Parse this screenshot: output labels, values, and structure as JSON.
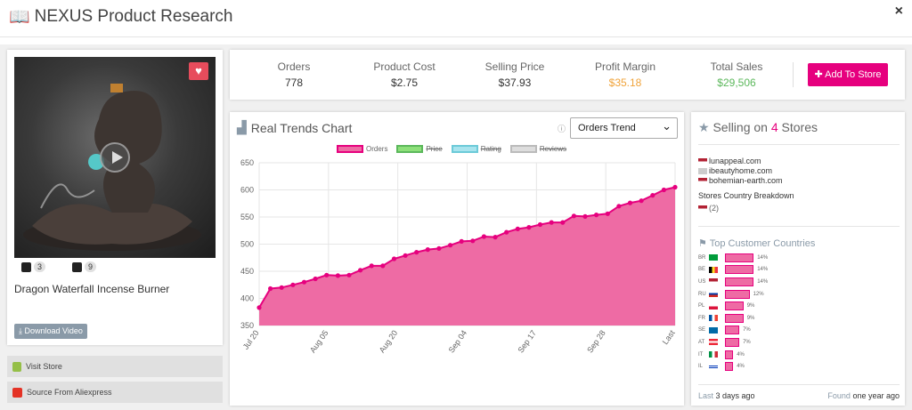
{
  "app": {
    "title": "NEXUS Product Research",
    "close_label": "×"
  },
  "product": {
    "name": "Dragon Waterfall Incense Burner",
    "shopify_count": "3",
    "mail_count": "9",
    "download_label": "Download Video",
    "visit_store_label": "Visit Store",
    "aliexpress_label": "Source From Aliexpress"
  },
  "stats": {
    "orders_label": "Orders",
    "orders_value": "778",
    "cost_label": "Product Cost",
    "cost_value": "$2.75",
    "price_label": "Selling Price",
    "price_value": "$37.93",
    "margin_label": "Profit Margin",
    "margin_value": "$35.18",
    "sales_label": "Total Sales",
    "sales_value": "$29,506",
    "add_label": "Add To Store"
  },
  "colors": {
    "accent": "#e6007e",
    "margin": "#f0a33a",
    "sales": "#5cb85c"
  },
  "trend": {
    "title": "Real Trends Chart",
    "select_value": "Orders Trend",
    "info_icon": "info-icon"
  },
  "chart_data": {
    "type": "area",
    "legend": [
      "Orders",
      "Price",
      "Rating",
      "Reviews"
    ],
    "x_ticks": [
      "Jul 20",
      "Aug 05",
      "Aug 20",
      "Sep 04",
      "Sep 17",
      "Sep 28",
      "Last"
    ],
    "y_ticks": [
      "350",
      "400",
      "450",
      "500",
      "550",
      "600",
      "650"
    ],
    "ylim": [
      350,
      650
    ],
    "grid": true,
    "values": [
      383,
      418,
      420,
      425,
      430,
      436,
      443,
      442,
      443,
      452,
      460,
      460,
      473,
      479,
      485,
      490,
      492,
      498,
      505,
      506,
      514,
      513,
      522,
      528,
      531,
      536,
      540,
      540,
      552,
      551,
      554,
      556,
      570,
      576,
      580,
      590,
      600,
      605
    ]
  },
  "stores": {
    "title_prefix": "Selling on",
    "count": "4",
    "title_suffix": "Stores",
    "list": [
      "lunappeal.com",
      "ibeautyhome.com",
      "bohemian-earth.com"
    ],
    "breakdown_label": "Stores Country Breakdown",
    "breakdown_value": "(2)"
  },
  "countries": {
    "title": "Top Customer Countries",
    "items": [
      {
        "code": "BR",
        "pct": "14%",
        "value": 14
      },
      {
        "code": "BE",
        "pct": "14%",
        "value": 14
      },
      {
        "code": "US",
        "pct": "14%",
        "value": 14
      },
      {
        "code": "RU",
        "pct": "12%",
        "value": 12
      },
      {
        "code": "PL",
        "pct": "9%",
        "value": 9
      },
      {
        "code": "FR",
        "pct": "9%",
        "value": 9
      },
      {
        "code": "SE",
        "pct": "7%",
        "value": 7
      },
      {
        "code": "AT",
        "pct": "7%",
        "value": 7
      },
      {
        "code": "IT",
        "pct": "4%",
        "value": 4
      },
      {
        "code": "IL",
        "pct": "4%",
        "value": 4
      }
    ]
  },
  "footer": {
    "last_label": "Last",
    "last_value": "3 days ago",
    "found_label": "Found",
    "found_value": "one year ago"
  }
}
